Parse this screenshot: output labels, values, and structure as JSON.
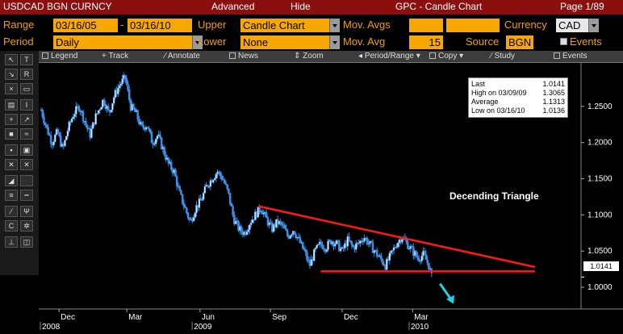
{
  "title_bar": {
    "security": "USDCAD BGN CURNCY",
    "advanced": "Advanced",
    "hide": "Hide",
    "function": "GPC - Candle Chart",
    "page": "Page 1/89"
  },
  "params": {
    "range_label": "Range",
    "range_start": "03/16/05",
    "range_dash": "-",
    "range_end": "03/16/10",
    "upper_label": "Upper",
    "upper_value": "Candle Chart",
    "movavgs_label": "Mov. Avgs",
    "movavgs_value1": "",
    "movavgs_value2": "",
    "currency_label": "Currency",
    "currency_value": "CAD",
    "period_label": "Period",
    "period_value": "Daily",
    "lower_label": "Lower",
    "lower_value": "None",
    "movavg_label": "Mov. Avg",
    "movavg_value": "15",
    "source_label": "Source",
    "source_value": "BGN",
    "events_label": "Events"
  },
  "toolbar": {
    "legend": "Legend",
    "track": "Track",
    "annotate": "Annotate",
    "news": "News",
    "zoom": "Zoom",
    "period_range": "Period/Range",
    "copy": "Copy",
    "study": "Study",
    "events": "Events"
  },
  "stats": {
    "last_label": "Last",
    "last_value": "1.0141",
    "high_label": "High on 03/09/09",
    "high_value": "1.3065",
    "avg_label": "Average",
    "avg_value": "1.1313",
    "low_label": "Low on 03/16/10",
    "low_value": "1.0136"
  },
  "annotation": {
    "text": "Decending Triangle",
    "last_price_tag": "1.0141"
  },
  "colors": {
    "title_bg": "#8a1010",
    "field_bg": "#f7a800",
    "label": "#f0a000",
    "candle": "#3a8fe6",
    "trendline": "#ff1a1a",
    "arrow": "#22d0e0"
  },
  "chart_data": {
    "type": "candlestick",
    "title": "",
    "y_ticks": [
      "1.2500",
      "1.2000",
      "1.1500",
      "1.1000",
      "1.0500",
      "1.0000"
    ],
    "ylim": [
      0.97,
      1.31
    ],
    "x_ticks": [
      {
        "label": "Dec",
        "pos": 0.03
      },
      {
        "label": "Mar",
        "pos": 0.155
      },
      {
        "label": "Jun",
        "pos": 0.29
      },
      {
        "label": "Sep",
        "pos": 0.42
      },
      {
        "label": "Dec",
        "pos": 0.552
      },
      {
        "label": "Mar",
        "pos": 0.682
      }
    ],
    "year_labels": [
      {
        "label": "2008",
        "pos": 0.0
      },
      {
        "label": "2009",
        "pos": 0.28
      },
      {
        "label": "2010",
        "pos": 0.68
      }
    ],
    "series": [
      {
        "close_path": [
          [
            0.0,
            1.245
          ],
          [
            0.01,
            1.22
          ],
          [
            0.02,
            1.2
          ],
          [
            0.03,
            1.215
          ],
          [
            0.04,
            1.19
          ],
          [
            0.05,
            1.22
          ],
          [
            0.06,
            1.24
          ],
          [
            0.07,
            1.25
          ],
          [
            0.08,
            1.23
          ],
          [
            0.09,
            1.21
          ],
          [
            0.1,
            1.235
          ],
          [
            0.115,
            1.26
          ],
          [
            0.125,
            1.24
          ],
          [
            0.135,
            1.265
          ],
          [
            0.145,
            1.28
          ],
          [
            0.155,
            1.29
          ],
          [
            0.165,
            1.25
          ],
          [
            0.175,
            1.24
          ],
          [
            0.185,
            1.22
          ],
          [
            0.195,
            1.225
          ],
          [
            0.205,
            1.2
          ],
          [
            0.215,
            1.21
          ],
          [
            0.225,
            1.19
          ],
          [
            0.235,
            1.17
          ],
          [
            0.245,
            1.16
          ],
          [
            0.255,
            1.13
          ],
          [
            0.265,
            1.11
          ],
          [
            0.275,
            1.09
          ],
          [
            0.285,
            1.11
          ],
          [
            0.295,
            1.12
          ],
          [
            0.305,
            1.14
          ],
          [
            0.315,
            1.15
          ],
          [
            0.325,
            1.16
          ],
          [
            0.335,
            1.15
          ],
          [
            0.345,
            1.13
          ],
          [
            0.355,
            1.095
          ],
          [
            0.365,
            1.08
          ],
          [
            0.375,
            1.075
          ],
          [
            0.385,
            1.09
          ],
          [
            0.395,
            1.1
          ],
          [
            0.405,
            1.11
          ],
          [
            0.415,
            1.095
          ],
          [
            0.425,
            1.08
          ],
          [
            0.435,
            1.09
          ],
          [
            0.445,
            1.085
          ],
          [
            0.455,
            1.07
          ],
          [
            0.465,
            1.08
          ],
          [
            0.475,
            1.065
          ],
          [
            0.485,
            1.05
          ],
          [
            0.495,
            1.03
          ],
          [
            0.505,
            1.05
          ],
          [
            0.515,
            1.06
          ],
          [
            0.525,
            1.055
          ],
          [
            0.535,
            1.065
          ],
          [
            0.545,
            1.06
          ],
          [
            0.555,
            1.05
          ],
          [
            0.565,
            1.065
          ],
          [
            0.575,
            1.055
          ],
          [
            0.585,
            1.06
          ],
          [
            0.595,
            1.07
          ],
          [
            0.605,
            1.06
          ],
          [
            0.615,
            1.05
          ],
          [
            0.625,
            1.04
          ],
          [
            0.635,
            1.03
          ],
          [
            0.645,
            1.045
          ],
          [
            0.655,
            1.06
          ],
          [
            0.665,
            1.07
          ],
          [
            0.675,
            1.06
          ],
          [
            0.685,
            1.05
          ],
          [
            0.695,
            1.04
          ],
          [
            0.705,
            1.045
          ],
          [
            0.715,
            1.03
          ],
          [
            0.72,
            1.0141
          ]
        ]
      }
    ],
    "trendlines": [
      {
        "name": "resistance",
        "from": [
          0.405,
          1.112
        ],
        "to": [
          0.915,
          1.028
        ]
      },
      {
        "name": "support",
        "from": [
          0.52,
          1.022
        ],
        "to": [
          0.915,
          1.022
        ]
      }
    ],
    "arrow": {
      "from": [
        0.74,
        1.005
      ],
      "to": [
        0.765,
        0.977
      ]
    },
    "last_price": 1.0141
  }
}
